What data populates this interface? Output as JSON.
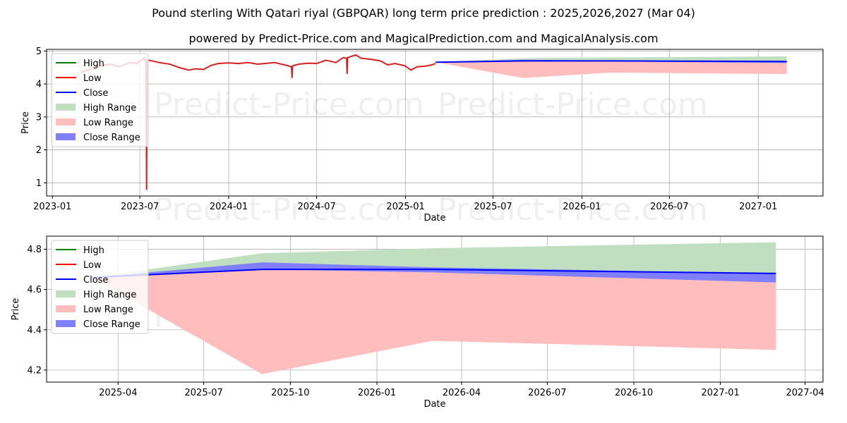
{
  "header": {
    "title": "Pound sterling With Qatari riyal (GBPQAR) long term price prediction : 2025,2026,2027 (Mar 04)",
    "subtitle": "powered by Predict-Price.com and MagicalPrediction.com and MagicalAnalysis.com"
  },
  "watermark": "Predict-Price.com",
  "colors": {
    "high": "#008000",
    "low": "#ff0000",
    "low_hist": "#d62020",
    "close": "#0000ff",
    "high_range": "#c0dfc0",
    "low_range": "#ffbdbd",
    "close_range": "#7f7fff",
    "grid": "#b0b0b0"
  },
  "legend": [
    "High",
    "Low",
    "Close",
    "High Range",
    "Low Range",
    "Close Range"
  ],
  "chart_data": [
    {
      "type": "line",
      "title": "Long term history and prediction",
      "xlabel": "Date",
      "ylabel": "Price",
      "ylim": [
        0.6,
        5.05
      ],
      "xlim": [
        "2022-12-20",
        "2027-05-15"
      ],
      "yticks": [
        1,
        2,
        3,
        4,
        5
      ],
      "xticks": [
        "2023-01",
        "2023-07",
        "2024-01",
        "2024-07",
        "2025-01",
        "2025-07",
        "2026-01",
        "2026-07",
        "2027-01"
      ],
      "grid": true,
      "legend_position": "upper left",
      "history_low": {
        "x": [
          "2023-03-01",
          "2023-03-20",
          "2023-04-10",
          "2023-05-01",
          "2023-05-20",
          "2023-06-10",
          "2023-06-25",
          "2023-07-10",
          "2023-07-14",
          "2023-07-15",
          "2023-07-16",
          "2023-07-20",
          "2023-08-10",
          "2023-09-01",
          "2023-09-20",
          "2023-10-10",
          "2023-10-25",
          "2023-11-10",
          "2023-11-25",
          "2023-12-10",
          "2024-01-01",
          "2024-01-20",
          "2024-02-10",
          "2024-03-01",
          "2024-03-15",
          "2024-04-05",
          "2024-04-25",
          "2024-05-10",
          "2024-05-11",
          "2024-05-12",
          "2024-05-25",
          "2024-06-15",
          "2024-07-01",
          "2024-07-20",
          "2024-08-10",
          "2024-08-25",
          "2024-09-01",
          "2024-09-02",
          "2024-09-03",
          "2024-09-20",
          "2024-10-01",
          "2024-10-20",
          "2024-11-10",
          "2024-11-25",
          "2024-12-10",
          "2024-12-31",
          "2025-01-12",
          "2025-01-25",
          "2025-02-10",
          "2025-02-25",
          "2025-03-04"
        ],
        "y": [
          4.35,
          4.45,
          4.55,
          4.6,
          4.52,
          4.65,
          4.62,
          4.78,
          4.7,
          0.8,
          4.7,
          4.72,
          4.65,
          4.6,
          4.5,
          4.42,
          4.46,
          4.44,
          4.56,
          4.62,
          4.64,
          4.62,
          4.65,
          4.6,
          4.62,
          4.65,
          4.58,
          4.52,
          4.2,
          4.55,
          4.6,
          4.63,
          4.62,
          4.72,
          4.65,
          4.8,
          4.78,
          4.32,
          4.8,
          4.88,
          4.78,
          4.75,
          4.7,
          4.58,
          4.62,
          4.55,
          4.42,
          4.52,
          4.54,
          4.58,
          4.62
        ]
      },
      "prediction": {
        "x": [
          "2025-03-04",
          "2025-09-01",
          "2026-03-01",
          "2027-03-01"
        ],
        "high_top": [
          4.66,
          4.78,
          4.805,
          4.835
        ],
        "close": [
          4.66,
          4.7,
          4.7,
          4.68
        ],
        "close_range_top": [
          4.66,
          4.735,
          4.71,
          4.68
        ],
        "close_range_bottom": [
          4.66,
          4.7,
          4.685,
          4.635
        ],
        "low_bottom": [
          4.66,
          4.18,
          4.345,
          4.3
        ]
      }
    },
    {
      "type": "area",
      "title": "Prediction detail",
      "xlabel": "Date",
      "ylabel": "Price",
      "ylim": [
        4.14,
        4.865
      ],
      "xlim": [
        "2025-01-15",
        "2027-04-20"
      ],
      "yticks": [
        4.2,
        4.4,
        4.6,
        4.8
      ],
      "xticks": [
        "2025-04",
        "2025-07",
        "2025-10",
        "2026-01",
        "2026-04",
        "2026-07",
        "2026-10",
        "2027-01",
        "2027-04"
      ],
      "grid": true,
      "legend_position": "upper left",
      "prediction": {
        "x": [
          "2025-03-04",
          "2025-09-01",
          "2026-03-01",
          "2027-03-01"
        ],
        "high_top": [
          4.66,
          4.78,
          4.805,
          4.835
        ],
        "close": [
          4.66,
          4.7,
          4.7,
          4.68
        ],
        "close_range_top": [
          4.66,
          4.735,
          4.71,
          4.68
        ],
        "close_range_bottom": [
          4.66,
          4.7,
          4.685,
          4.635
        ],
        "low_bottom": [
          4.66,
          4.18,
          4.345,
          4.3
        ]
      }
    }
  ]
}
